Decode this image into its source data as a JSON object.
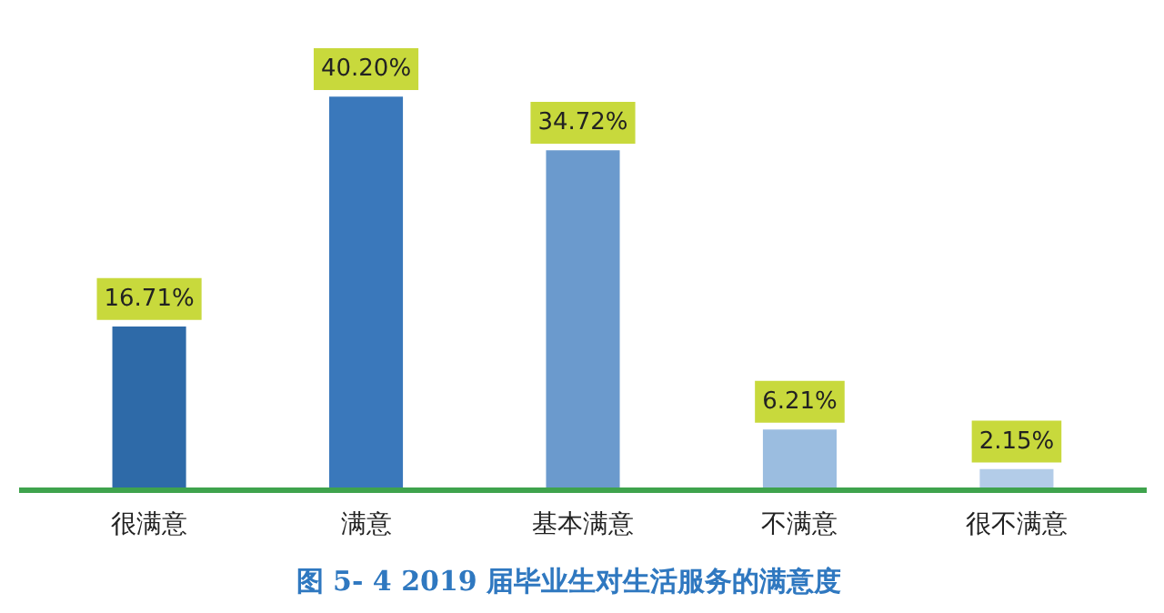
{
  "chart_data": {
    "type": "bar",
    "title": "图 5- 4    2019 届毕业生对生活服务的满意度",
    "categories": [
      "很满意",
      "满意",
      "基本满意",
      "不满意",
      "很不满意"
    ],
    "values": [
      16.71,
      40.2,
      34.72,
      6.21,
      2.15
    ],
    "colors": [
      "#2e6aa8",
      "#3a78bb",
      "#6b9acd",
      "#9bbde0",
      "#b3cce8"
    ],
    "value_labels": [
      "16.71%",
      "40.20%",
      "34.72%",
      "6.21%",
      "2.15%"
    ],
    "grid": false
  }
}
